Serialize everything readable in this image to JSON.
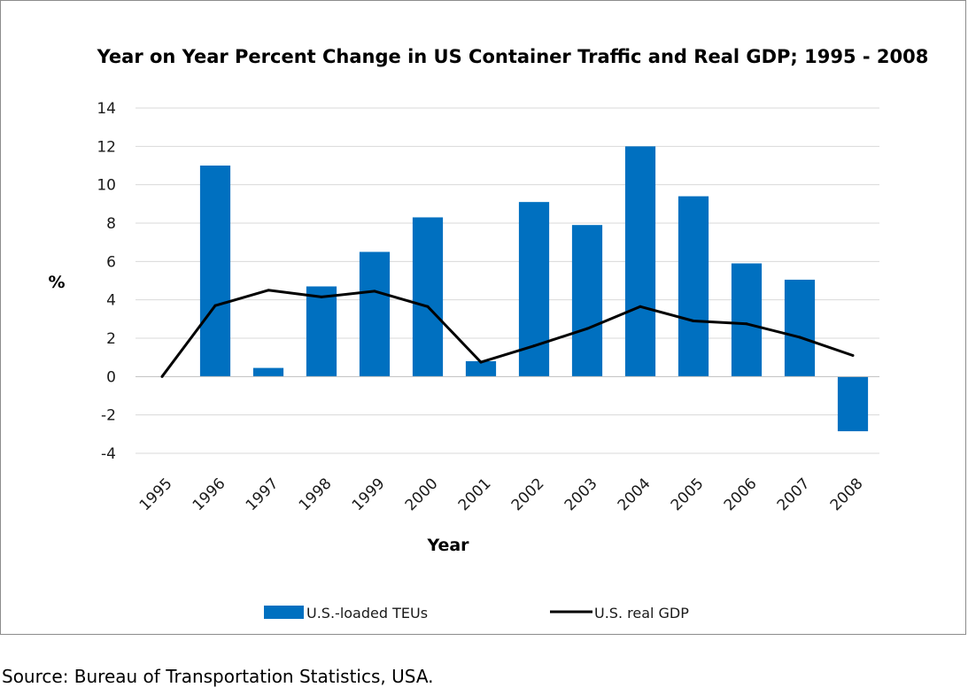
{
  "chart_data": {
    "type": "bar",
    "title": "Year on Year Percent Change in US Container Traffic and Real GDP; 1995 - 2008",
    "xlabel": "Year",
    "ylabel": "%",
    "categories": [
      "1995",
      "1996",
      "1997",
      "1998",
      "1999",
      "2000",
      "2001",
      "2002",
      "2003",
      "2004",
      "2005",
      "2006",
      "2007",
      "2008"
    ],
    "ylim": [
      -4,
      14
    ],
    "yticks": [
      -4,
      -2,
      0,
      2,
      4,
      6,
      8,
      10,
      12,
      14
    ],
    "grid": true,
    "legend_position": "bottom",
    "series": [
      {
        "name": "U.S.-loaded TEUs",
        "type": "bar",
        "color": "#0070C0",
        "values": [
          null,
          11.0,
          0.45,
          4.7,
          6.5,
          8.3,
          0.8,
          9.1,
          7.9,
          12.0,
          9.4,
          5.9,
          5.05,
          -2.85
        ]
      },
      {
        "name": "U.S. real GDP",
        "type": "line",
        "color": "#000000",
        "values": [
          0.0,
          3.7,
          4.5,
          4.15,
          4.45,
          3.65,
          0.75,
          1.6,
          2.5,
          3.65,
          2.9,
          2.75,
          2.05,
          1.1
        ]
      }
    ]
  },
  "source_note": "Source: Bureau of Transportation Statistics, USA."
}
